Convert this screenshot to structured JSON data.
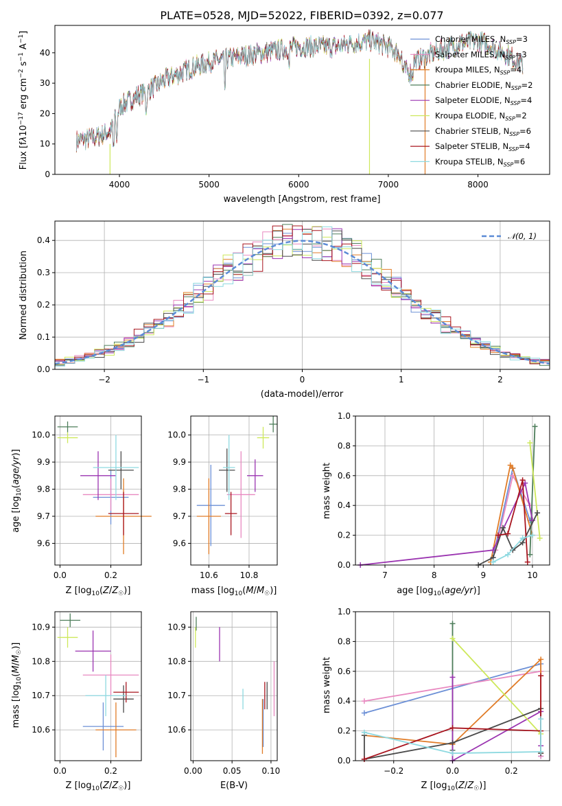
{
  "colors": {
    "chabrier_miles": "#6b8fd6",
    "salpeter_miles": "#e888c0",
    "kroupa_miles": "#e07b26",
    "chabrier_elodie": "#4d7d5a",
    "salpeter_elodie": "#9a33b0",
    "kroupa_elodie": "#cde85a",
    "chabrier_stelib": "#4a4a4a",
    "salpeter_stelib": "#a8141e",
    "kroupa_stelib": "#8dd9e0",
    "normal_fit": "#5b8ad6"
  },
  "chart_data": [
    {
      "id": "spectrum",
      "type": "line",
      "title": "PLATE=0528, MJD=52022, FIBERID=0392, z=0.077",
      "xlabel": "wavelength [Angstrom, rest frame]",
      "ylabel": "Flux [f_λ 10^-17 erg cm^-2 s^-1 A^-1]",
      "xlim": [
        3280,
        8800
      ],
      "ylim": [
        0,
        49
      ],
      "xticks": [
        "4000",
        "5000",
        "6000",
        "7000",
        "8000"
      ],
      "yticks": [
        "0",
        "10",
        "20",
        "30",
        "40"
      ],
      "legend_position": "right",
      "legend": [
        "Chabrier MILES, N_SSP=3",
        "Salpeter MILES, N_SSP=3",
        "Kroupa MILES, N_SSP=4",
        "Chabrier ELODIE, N_SSP=2",
        "Salpeter ELODIE, N_SSP=4",
        "Kroupa ELODIE, N_SSP=2",
        "Chabrier STELIB, N_SSP=6",
        "Salpeter STELIB, N_SSP=4",
        "Kroupa STELIB, N_SSP=6"
      ],
      "continuum": {
        "x": [
          3520,
          3700,
          3900,
          4000,
          4200,
          4300,
          4500,
          4800,
          5000,
          5200,
          5400,
          5600,
          5800,
          6000,
          6200,
          6400,
          6600,
          6800,
          7000,
          7100,
          7200,
          7300,
          7500,
          7800,
          8000,
          8300,
          8500
        ],
        "y": [
          11,
          12,
          14,
          22,
          26,
          27,
          31,
          35,
          37,
          38,
          39,
          40,
          41,
          42,
          42,
          42,
          43,
          44,
          42,
          40,
          38,
          37,
          40,
          43,
          44,
          40,
          36
        ]
      }
    },
    {
      "id": "residuals",
      "type": "area",
      "xlabel": "(data-model)/error",
      "ylabel": "Normed distribution",
      "xlim": [
        -2.5,
        2.5
      ],
      "ylim": [
        0,
        0.46
      ],
      "xticks": [
        "−2",
        "−1",
        "0",
        "1",
        "2"
      ],
      "yticks": [
        "0.0",
        "0.1",
        "0.2",
        "0.3",
        "0.4"
      ],
      "grid": true,
      "legend": "𝒩(0, 1)",
      "legend_position": "top-right"
    },
    {
      "id": "age_vs_Z",
      "type": "scatter",
      "xlabel": "Z [log10(Z/Z☉)]",
      "ylabel": "age [log10(age/yr)]",
      "xlim": [
        -0.02,
        0.32
      ],
      "ylim": [
        9.52,
        10.07
      ],
      "xticks": [
        "0.0",
        "0.2"
      ],
      "yticks": [
        "9.6",
        "9.7",
        "9.8",
        "9.9",
        "10.0"
      ],
      "grid": true,
      "points": [
        {
          "x": 0.2,
          "y": 9.77,
          "xerr": 0.07,
          "yerr": 0.1,
          "color": "chabrier_miles"
        },
        {
          "x": 0.2,
          "y": 9.78,
          "xerr": 0.11,
          "yerr": 0.06,
          "color": "salpeter_miles"
        },
        {
          "x": 0.25,
          "y": 9.7,
          "xerr": 0.11,
          "yerr": 0.14,
          "color": "kroupa_miles"
        },
        {
          "x": 0.03,
          "y": 10.03,
          "xerr": 0.04,
          "yerr": 0.02,
          "color": "chabrier_elodie"
        },
        {
          "x": 0.15,
          "y": 9.85,
          "xerr": 0.07,
          "yerr": 0.09,
          "color": "salpeter_elodie"
        },
        {
          "x": 0.03,
          "y": 9.99,
          "xerr": 0.04,
          "yerr": 0.02,
          "color": "kroupa_elodie"
        },
        {
          "x": 0.24,
          "y": 9.87,
          "xerr": 0.05,
          "yerr": 0.07,
          "color": "chabrier_stelib"
        },
        {
          "x": 0.25,
          "y": 9.71,
          "xerr": 0.06,
          "yerr": 0.08,
          "color": "salpeter_stelib"
        },
        {
          "x": 0.22,
          "y": 9.88,
          "xerr": 0.09,
          "yerr": 0.12,
          "color": "kroupa_stelib"
        }
      ]
    },
    {
      "id": "age_vs_mass",
      "type": "scatter",
      "xlabel": "mass [log10(M/M☉)]",
      "ylabel": "",
      "xlim": [
        10.51,
        10.94
      ],
      "ylim": [
        9.52,
        10.07
      ],
      "xticks": [
        "10.6",
        "10.8"
      ],
      "yticks": [
        "9.6",
        "9.7",
        "9.8",
        "9.9",
        "10.0"
      ],
      "grid": true,
      "points": [
        {
          "x": 10.61,
          "y": 9.74,
          "xerr": 0.07,
          "yerr": 0.15,
          "color": "chabrier_miles"
        },
        {
          "x": 10.76,
          "y": 9.78,
          "xerr": 0.07,
          "yerr": 0.16,
          "color": "salpeter_miles"
        },
        {
          "x": 10.6,
          "y": 9.7,
          "xerr": 0.06,
          "yerr": 0.14,
          "color": "kroupa_miles"
        },
        {
          "x": 10.92,
          "y": 10.04,
          "xerr": 0.02,
          "yerr": 0.03,
          "color": "chabrier_elodie"
        },
        {
          "x": 10.83,
          "y": 9.85,
          "xerr": 0.04,
          "yerr": 0.06,
          "color": "salpeter_elodie"
        },
        {
          "x": 10.87,
          "y": 9.99,
          "xerr": 0.03,
          "yerr": 0.04,
          "color": "kroupa_elodie"
        },
        {
          "x": 10.69,
          "y": 9.87,
          "xerr": 0.04,
          "yerr": 0.08,
          "color": "chabrier_stelib"
        },
        {
          "x": 10.71,
          "y": 9.71,
          "xerr": 0.03,
          "yerr": 0.08,
          "color": "salpeter_stelib"
        },
        {
          "x": 10.7,
          "y": 9.88,
          "xerr": 0.03,
          "yerr": 0.12,
          "color": "kroupa_stelib"
        }
      ]
    },
    {
      "id": "weight_vs_age",
      "type": "line",
      "xlabel": "age [log10(age/yr)]",
      "ylabel": "mass weight",
      "xlim": [
        6.4,
        10.35
      ],
      "ylim": [
        0,
        1.0
      ],
      "xticks": [
        "7",
        "8",
        "9",
        "10"
      ],
      "yticks": [
        "0.0",
        "0.2",
        "0.4",
        "0.6",
        "0.8",
        "1.0"
      ],
      "grid": true,
      "series": [
        {
          "color": "chabrier_miles",
          "x": [
            9.2,
            9.6,
            9.95
          ],
          "y": [
            0.05,
            0.65,
            0.3
          ]
        },
        {
          "color": "salpeter_miles",
          "x": [
            9.25,
            9.6,
            9.95
          ],
          "y": [
            0.1,
            0.6,
            0.4
          ]
        },
        {
          "color": "kroupa_miles",
          "x": [
            9.15,
            9.55,
            9.6,
            10.0
          ],
          "y": [
            0.02,
            0.67,
            0.65,
            0.2
          ]
        },
        {
          "color": "chabrier_elodie",
          "x": [
            9.95,
            10.05
          ],
          "y": [
            0.07,
            0.93
          ]
        },
        {
          "color": "salpeter_elodie",
          "x": [
            6.5,
            9.2,
            9.85,
            10.0
          ],
          "y": [
            0.0,
            0.1,
            0.55,
            0.3
          ]
        },
        {
          "color": "kroupa_elodie",
          "x": [
            9.95,
            10.15
          ],
          "y": [
            0.82,
            0.18
          ]
        },
        {
          "color": "chabrier_stelib",
          "x": [
            8.9,
            9.2,
            9.4,
            9.6,
            9.8,
            10.1
          ],
          "y": [
            0.0,
            0.05,
            0.25,
            0.1,
            0.15,
            0.35
          ]
        },
        {
          "color": "salpeter_stelib",
          "x": [
            9.3,
            9.5,
            9.8,
            9.9
          ],
          "y": [
            0.2,
            0.21,
            0.57,
            0.02
          ]
        },
        {
          "color": "kroupa_stelib",
          "x": [
            9.2,
            9.5,
            9.8,
            10.0
          ],
          "y": [
            0.02,
            0.07,
            0.18,
            0.2
          ]
        }
      ]
    },
    {
      "id": "mass_vs_Z",
      "type": "scatter",
      "xlabel": "Z [log10(Z/Z☉)]",
      "ylabel": "mass [log10(M/M☉)]",
      "xlim": [
        -0.02,
        0.32
      ],
      "ylim": [
        10.51,
        10.945
      ],
      "xticks": [
        "0.0",
        "0.2"
      ],
      "yticks": [
        "10.6",
        "10.7",
        "10.8",
        "10.9"
      ],
      "grid": true,
      "points": [
        {
          "x": 0.17,
          "y": 10.61,
          "xerr": 0.08,
          "yerr": 0.07,
          "color": "chabrier_miles"
        },
        {
          "x": 0.2,
          "y": 10.76,
          "xerr": 0.11,
          "yerr": 0.06,
          "color": "salpeter_miles"
        },
        {
          "x": 0.22,
          "y": 10.6,
          "xerr": 0.08,
          "yerr": 0.08,
          "color": "kroupa_miles"
        },
        {
          "x": 0.04,
          "y": 10.92,
          "xerr": 0.04,
          "yerr": 0.02,
          "color": "chabrier_elodie"
        },
        {
          "x": 0.13,
          "y": 10.83,
          "xerr": 0.07,
          "yerr": 0.06,
          "color": "salpeter_elodie"
        },
        {
          "x": 0.03,
          "y": 10.87,
          "xerr": 0.04,
          "yerr": 0.03,
          "color": "kroupa_elodie"
        },
        {
          "x": 0.25,
          "y": 10.69,
          "xerr": 0.04,
          "yerr": 0.04,
          "color": "chabrier_stelib"
        },
        {
          "x": 0.26,
          "y": 10.71,
          "xerr": 0.05,
          "yerr": 0.03,
          "color": "salpeter_stelib"
        },
        {
          "x": 0.18,
          "y": 10.7,
          "xerr": 0.08,
          "yerr": 0.06,
          "color": "kroupa_stelib"
        }
      ]
    },
    {
      "id": "mass_vs_ebv",
      "type": "scatter",
      "xlabel": "E(B-V)",
      "ylabel": "",
      "xlim": [
        -0.003,
        0.108
      ],
      "ylim": [
        10.51,
        10.945
      ],
      "xticks": [
        "0.00",
        "0.05",
        "0.10"
      ],
      "yticks": [
        "10.6",
        "10.7",
        "10.8",
        "10.9"
      ],
      "grid": true,
      "points": [
        {
          "x": 0.09,
          "y": 10.62,
          "xerr": 0,
          "yerr": 0.07,
          "color": "chabrier_miles"
        },
        {
          "x": 0.104,
          "y": 10.72,
          "xerr": 0,
          "yerr": 0.08,
          "color": "salpeter_miles"
        },
        {
          "x": 0.089,
          "y": 10.61,
          "xerr": 0,
          "yerr": 0.08,
          "color": "kroupa_miles"
        },
        {
          "x": 0.004,
          "y": 10.91,
          "xerr": 0,
          "yerr": 0.02,
          "color": "chabrier_elodie"
        },
        {
          "x": 0.034,
          "y": 10.85,
          "xerr": 0,
          "yerr": 0.05,
          "color": "salpeter_elodie"
        },
        {
          "x": 0.003,
          "y": 10.87,
          "xerr": 0,
          "yerr": 0.03,
          "color": "kroupa_elodie"
        },
        {
          "x": 0.095,
          "y": 10.7,
          "xerr": 0,
          "yerr": 0.04,
          "color": "chabrier_stelib"
        },
        {
          "x": 0.092,
          "y": 10.7,
          "xerr": 0,
          "yerr": 0.04,
          "color": "salpeter_stelib"
        },
        {
          "x": 0.064,
          "y": 10.69,
          "xerr": 0,
          "yerr": 0.03,
          "color": "kroupa_stelib"
        }
      ]
    },
    {
      "id": "weight_vs_Z",
      "type": "line",
      "xlabel": "Z [log10(Z/Z☉)]",
      "ylabel": "mass weight",
      "xlim": [
        -0.33,
        0.33
      ],
      "ylim": [
        0,
        1.0
      ],
      "xticks": [
        "−0.2",
        "0.0",
        "0.2"
      ],
      "yticks": [
        "0.0",
        "0.2",
        "0.4",
        "0.6",
        "0.8",
        "1.0"
      ],
      "grid": true,
      "series": [
        {
          "color": "chabrier_miles",
          "x": [
            -0.3,
            0.3,
            0.3
          ],
          "y": [
            0.32,
            0.65,
            0.03
          ]
        },
        {
          "color": "salpeter_miles",
          "x": [
            -0.3,
            0.3,
            0.3
          ],
          "y": [
            0.4,
            0.6,
            0.03
          ]
        },
        {
          "color": "kroupa_miles",
          "x": [
            -0.3,
            0.0,
            0.3,
            0.3
          ],
          "y": [
            0.17,
            0.11,
            0.68,
            0.05
          ]
        },
        {
          "color": "chabrier_elodie",
          "x": [
            0.0,
            0.0
          ],
          "y": [
            0.92,
            0.07
          ]
        },
        {
          "color": "salpeter_elodie",
          "x": [
            0.0,
            0.0,
            0.3,
            0.3
          ],
          "y": [
            0.56,
            0.0,
            0.33,
            0.1
          ]
        },
        {
          "color": "kroupa_elodie",
          "x": [
            0.0,
            0.3
          ],
          "y": [
            0.82,
            0.18
          ]
        },
        {
          "color": "chabrier_stelib",
          "x": [
            -0.3,
            -0.3,
            0.0,
            0.3,
            0.3
          ],
          "y": [
            0.17,
            0.01,
            0.12,
            0.35,
            0.05
          ]
        },
        {
          "color": "salpeter_stelib",
          "x": [
            -0.3,
            0.0,
            0.3,
            0.3
          ],
          "y": [
            0.01,
            0.22,
            0.2,
            0.57
          ]
        },
        {
          "color": "kroupa_stelib",
          "x": [
            -0.3,
            0.0,
            0.3,
            0.3
          ],
          "y": [
            0.19,
            0.05,
            0.06,
            0.28
          ]
        }
      ]
    }
  ]
}
